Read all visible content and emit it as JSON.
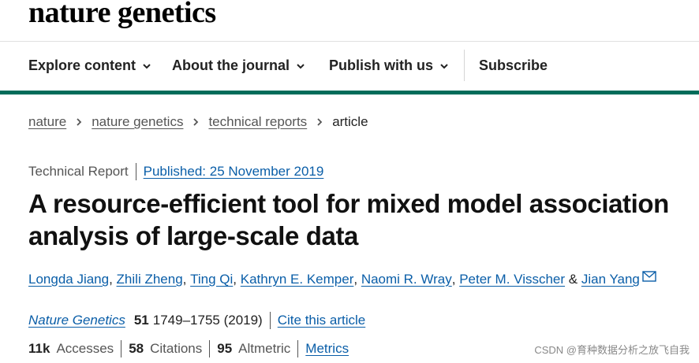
{
  "site": {
    "logo_text": "nature genetics"
  },
  "nav": {
    "items": [
      {
        "label": "Explore content",
        "has_dropdown": true
      },
      {
        "label": "About the journal",
        "has_dropdown": true
      },
      {
        "label": "Publish with us",
        "has_dropdown": true
      }
    ],
    "subscribe_label": "Subscribe"
  },
  "breadcrumb": {
    "items": [
      "nature",
      "nature genetics",
      "technical reports"
    ],
    "current": "article"
  },
  "article": {
    "type": "Technical Report",
    "published": "Published: 25 November 2019",
    "title": "A resource-efficient tool for mixed model association analysis of large-scale data",
    "authors": [
      "Longda Jiang",
      "Zhili Zheng",
      "Ting Qi",
      "Kathryn E. Kemper",
      "Naomi R. Wray",
      "Peter M. Visscher",
      "Jian Yang"
    ],
    "author_separator": ", ",
    "author_last_separator": " & ",
    "citation": {
      "journal": "Nature Genetics",
      "volume": "51",
      "pages_year": "1749–1755 (2019)",
      "cite_link": "Cite this article"
    },
    "metrics": {
      "accesses_value": "11k",
      "accesses_label": "Accesses",
      "citations_value": "58",
      "citations_label": "Citations",
      "altmetric_value": "95",
      "altmetric_label": "Altmetric",
      "metrics_link": "Metrics"
    }
  },
  "watermark": "CSDN @育种数据分析之放飞自我",
  "colors": {
    "accent_green": "#006c5a",
    "link_blue": "#0a5ea8"
  },
  "icons": [
    "chevron-down-icon",
    "chevron-right-icon",
    "mail-icon"
  ]
}
